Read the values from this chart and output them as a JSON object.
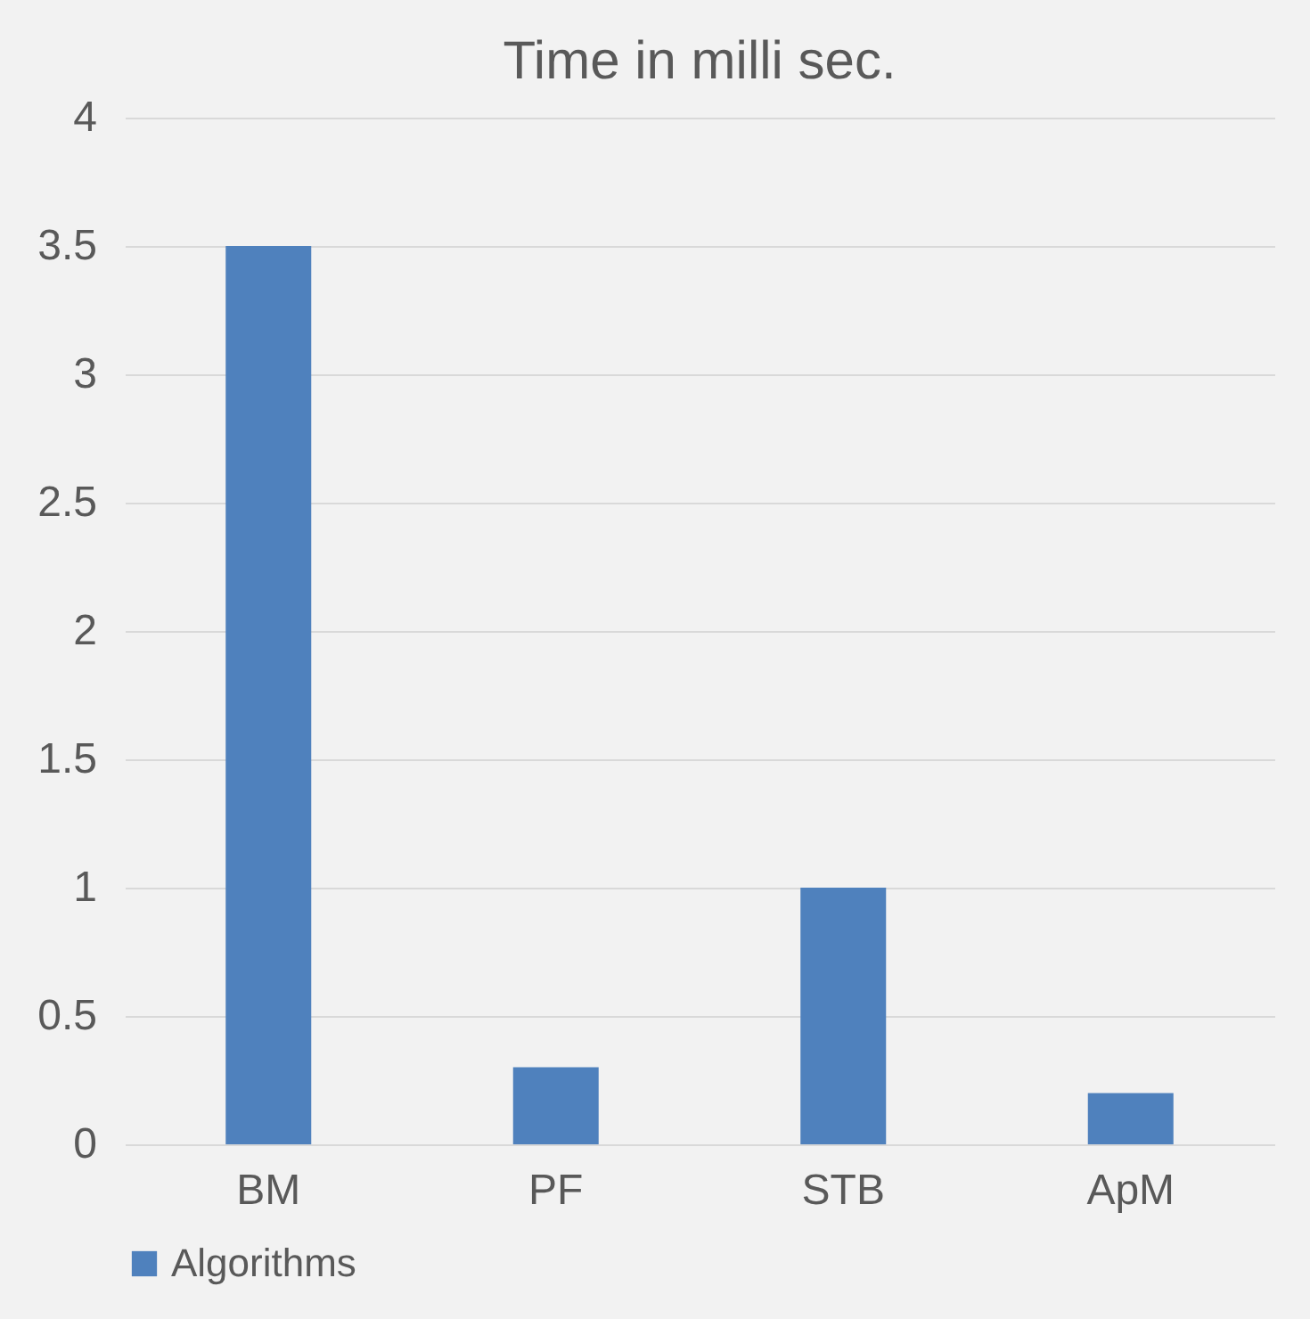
{
  "chart_data": {
    "type": "bar",
    "title": "Time in milli sec.",
    "categories": [
      "BM",
      "PF",
      "STB",
      "ApM"
    ],
    "series": [
      {
        "name": "Algorithms",
        "color": "#4f81bd",
        "values": [
          3.5,
          0.3,
          1.0,
          0.2
        ]
      }
    ],
    "ylim": [
      0,
      4
    ],
    "yticks": [
      0,
      0.5,
      1,
      1.5,
      2,
      2.5,
      3,
      3.5,
      4
    ],
    "grid": "y",
    "legend": "bottom"
  }
}
